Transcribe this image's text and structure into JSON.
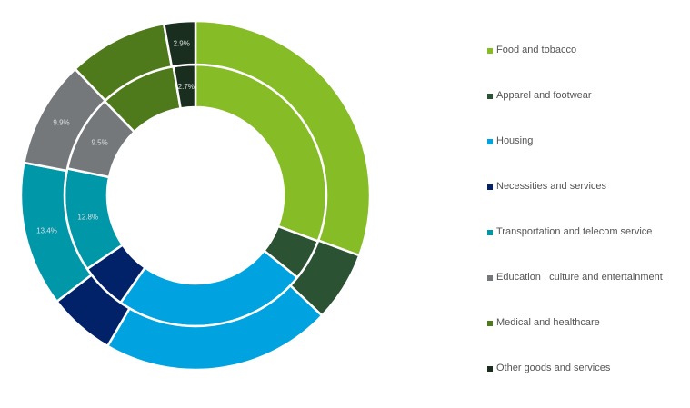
{
  "chart_data": {
    "type": "pie",
    "subtype": "nested-donut",
    "categories": [
      "Food and tobacco",
      "Apparel and footwear",
      "Housing",
      "Necessities and services",
      "Transportation and telecom service",
      "Education , culture and entertainment",
      "Medical and healthcare",
      "Other goods and services"
    ],
    "colors": [
      "#86bc25",
      "#2c5234",
      "#00a3e0",
      "#012169",
      "#0097a9",
      "#75787b",
      "#4f7a1c",
      "#1a2e1f"
    ],
    "series": [
      {
        "name": "inner",
        "values": [
          30.7,
          5.1,
          23.9,
          5.8,
          12.8,
          9.5,
          9.5,
          2.7
        ],
        "labels": [
          null,
          null,
          null,
          null,
          "12.8%",
          "9.5%",
          null,
          "2.7%"
        ]
      },
      {
        "name": "outer",
        "values": [
          30.6,
          6.5,
          21.3,
          6.2,
          13.4,
          9.9,
          9.2,
          2.9
        ],
        "labels": [
          null,
          null,
          null,
          null,
          "13.4%",
          "9.9%",
          null,
          "2.9%"
        ]
      }
    ],
    "legend_position": "right",
    "unit": "%"
  }
}
